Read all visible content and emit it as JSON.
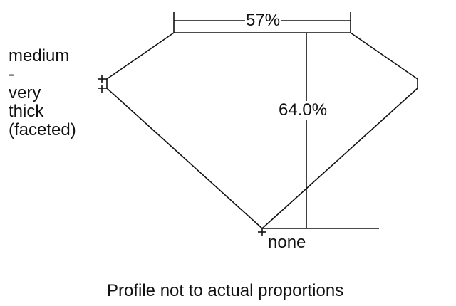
{
  "diagram": {
    "table_percent": "57%",
    "depth_percent": "64.0%",
    "girdle_label_lines": [
      "medium",
      "-",
      "very",
      "thick",
      "(faceted)"
    ],
    "culet_label": "none",
    "caption": "Profile not to actual proportions",
    "line_color": "#111111"
  }
}
